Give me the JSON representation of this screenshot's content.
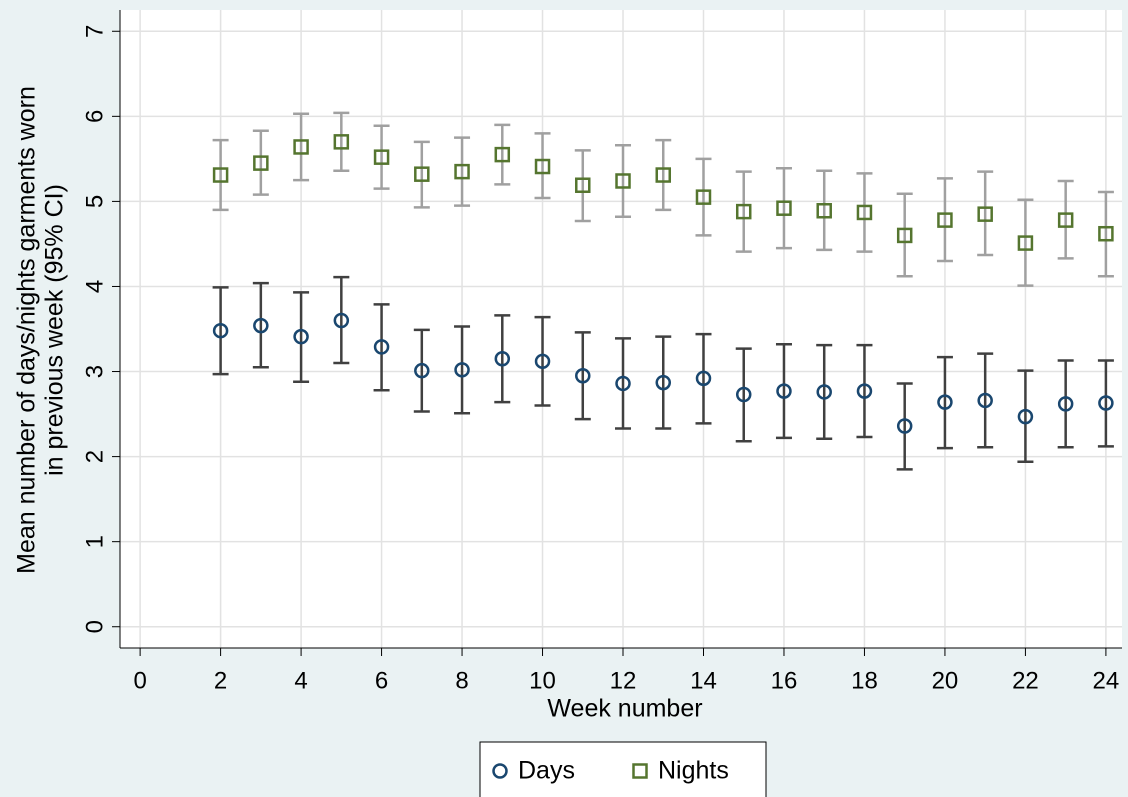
{
  "chart_data": {
    "type": "errorbar",
    "x_label": "Week number",
    "y_label": [
      "Mean number of days/nights garments worn",
      "in previous week (95% CI)"
    ],
    "x": [
      2,
      3,
      4,
      5,
      6,
      7,
      8,
      9,
      10,
      11,
      12,
      13,
      14,
      15,
      16,
      17,
      18,
      19,
      20,
      21,
      22,
      23,
      24
    ],
    "series": [
      {
        "name": "Days",
        "color": "#1a476f",
        "ci_color": "#404040",
        "marker": "circle",
        "values": [
          3.48,
          3.54,
          3.41,
          3.6,
          3.29,
          3.01,
          3.02,
          3.15,
          3.12,
          2.95,
          2.86,
          2.87,
          2.92,
          2.73,
          2.77,
          2.76,
          2.77,
          2.36,
          2.64,
          2.66,
          2.47,
          2.62,
          2.63
        ],
        "lower": [
          2.97,
          3.05,
          2.88,
          3.1,
          2.78,
          2.53,
          2.51,
          2.64,
          2.6,
          2.44,
          2.33,
          2.33,
          2.39,
          2.18,
          2.22,
          2.21,
          2.23,
          1.85,
          2.1,
          2.11,
          1.94,
          2.11,
          2.12
        ],
        "upper": [
          3.99,
          4.04,
          3.93,
          4.11,
          3.79,
          3.49,
          3.53,
          3.66,
          3.64,
          3.46,
          3.39,
          3.41,
          3.44,
          3.27,
          3.32,
          3.31,
          3.31,
          2.86,
          3.17,
          3.21,
          3.01,
          3.13,
          3.13
        ]
      },
      {
        "name": "Nights",
        "color": "#55752f",
        "ci_color": "#a0a0a0",
        "marker": "square",
        "values": [
          5.31,
          5.45,
          5.64,
          5.7,
          5.52,
          5.32,
          5.35,
          5.55,
          5.41,
          5.19,
          5.24,
          5.31,
          5.05,
          4.88,
          4.92,
          4.89,
          4.87,
          4.6,
          4.78,
          4.85,
          4.51,
          4.78,
          4.62
        ],
        "lower": [
          4.9,
          5.08,
          5.25,
          5.36,
          5.15,
          4.93,
          4.95,
          5.2,
          5.04,
          4.77,
          4.82,
          4.9,
          4.6,
          4.41,
          4.45,
          4.43,
          4.41,
          4.12,
          4.3,
          4.37,
          4.01,
          4.33,
          4.12
        ],
        "upper": [
          5.72,
          5.83,
          6.03,
          6.04,
          5.89,
          5.7,
          5.75,
          5.9,
          5.8,
          5.6,
          5.66,
          5.72,
          5.5,
          5.35,
          5.39,
          5.36,
          5.33,
          5.09,
          5.27,
          5.35,
          5.02,
          5.24,
          5.11
        ]
      }
    ],
    "xlim": [
      -0.5,
      24.4
    ],
    "ylim": [
      -0.25,
      7.25
    ],
    "xticks": [
      0,
      2,
      4,
      6,
      8,
      10,
      12,
      14,
      16,
      18,
      20,
      22,
      24
    ],
    "yticks": [
      0,
      1,
      2,
      3,
      4,
      5,
      6,
      7
    ],
    "grid": true
  }
}
